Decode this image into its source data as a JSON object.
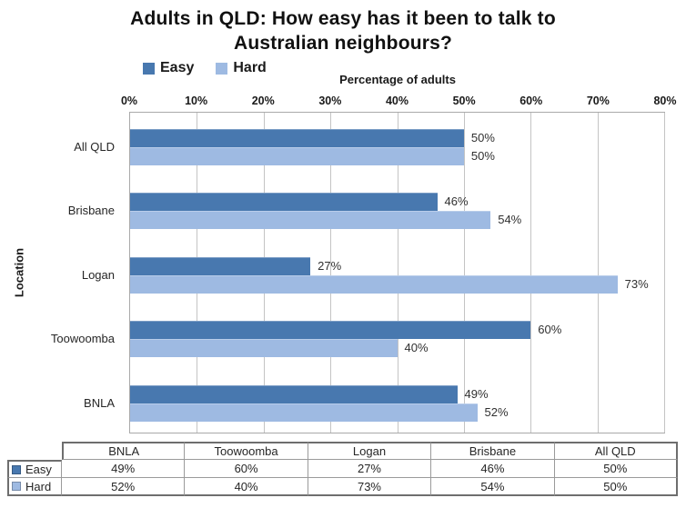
{
  "header": {
    "title_line1": "Adults in QLD: How easy has it been to talk to",
    "title_line2": "Australian neighbours?"
  },
  "chart_data": {
    "type": "bar",
    "orientation": "horizontal",
    "title": "Adults in QLD: How easy has it been to talk to Australian neighbours?",
    "xlabel": "Percentage of adults",
    "ylabel": "Location",
    "xlim": [
      0,
      80
    ],
    "xticks": [
      "0%",
      "10%",
      "20%",
      "30%",
      "40%",
      "50%",
      "60%",
      "70%",
      "80%"
    ],
    "grid": true,
    "legend_position": "top-left",
    "categories": [
      "All QLD",
      "Brisbane",
      "Logan",
      "Toowoomba",
      "BNLA"
    ],
    "series": [
      {
        "name": "Easy",
        "color": "#4878AF",
        "values": [
          50,
          46,
          27,
          60,
          49
        ],
        "data_labels": [
          "50%",
          "46%",
          "27%",
          "60%",
          "49%"
        ]
      },
      {
        "name": "Hard",
        "color": "#9EBAE2",
        "values": [
          50,
          54,
          73,
          40,
          52
        ],
        "data_labels": [
          "50%",
          "54%",
          "73%",
          "40%",
          "52%"
        ]
      }
    ]
  },
  "table": {
    "columns": [
      "BNLA",
      "Toowoomba",
      "Logan",
      "Brisbane",
      "All QLD"
    ],
    "rows": [
      {
        "label": "Easy",
        "key_color": "#4878AF",
        "values": [
          "49%",
          "60%",
          "27%",
          "46%",
          "50%"
        ]
      },
      {
        "label": "Hard",
        "key_color": "#9EBAE2",
        "values": [
          "52%",
          "40%",
          "73%",
          "54%",
          "50%"
        ]
      }
    ]
  }
}
